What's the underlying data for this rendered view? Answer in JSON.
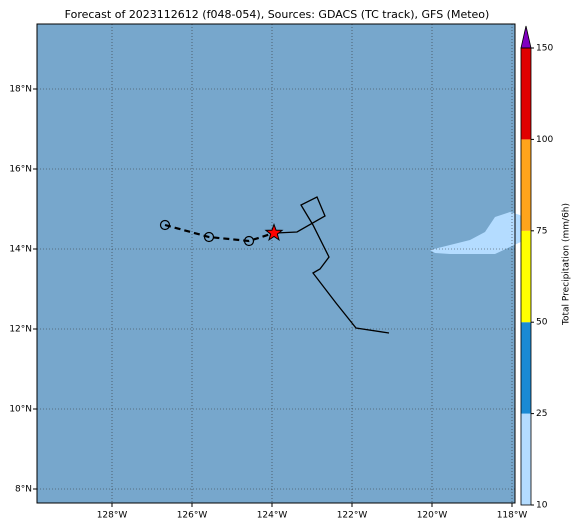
{
  "chart_data": {
    "type": "map",
    "title": "Forecast of 2023112612 (f048-054), Sources: GDACS (TC track), GFS (Meteo)",
    "xlim": [
      -129.875,
      -117.925
    ],
    "ylim": [
      7.65,
      19.625
    ],
    "xticks": [
      {
        "value": -128,
        "label": "128°W"
      },
      {
        "value": -126,
        "label": "126°W"
      },
      {
        "value": -124,
        "label": "124°W"
      },
      {
        "value": -122,
        "label": "122°W"
      },
      {
        "value": -120,
        "label": "120°W"
      },
      {
        "value": -118,
        "label": "118°W"
      }
    ],
    "yticks": [
      {
        "value": 8,
        "label": "8°N"
      },
      {
        "value": 10,
        "label": "10°N"
      },
      {
        "value": 12,
        "label": "12°N"
      },
      {
        "value": 14,
        "label": "14°N"
      },
      {
        "value": 16,
        "label": "16°N"
      },
      {
        "value": 18,
        "label": "18°N"
      }
    ],
    "grid": true,
    "background": "#77a7cc",
    "precip_area": {
      "color": "#b4dcff",
      "lon": [
        -120.05,
        -119.55,
        -119.05,
        -118.675,
        -118.425,
        -118.05,
        -117.8,
        -117.675,
        -117.675,
        -118.05,
        -118.425,
        -118.925,
        -119.55,
        -119.925
      ],
      "lat": [
        13.975,
        14.1,
        14.225,
        14.425,
        14.8,
        14.925,
        14.85,
        14.55,
        14.225,
        14.05,
        13.875,
        13.875,
        13.875,
        13.9
      ]
    },
    "precip_area_edge": {
      "color": "#b4dcff",
      "lon": [
        -117.675,
        -117.925,
        -117.925,
        -117.75
      ],
      "lat": [
        14.8,
        14.875,
        14.475,
        14.425
      ]
    },
    "track": {
      "color": "#000000",
      "lon": [
        -123.9,
        -123.375,
        -122.675,
        -122.875,
        -123.275,
        -122.975,
        -122.575,
        -122.8,
        -122.975,
        -122.4,
        -121.9,
        -121.075
      ],
      "lat": [
        14.4,
        14.425,
        14.825,
        15.3,
        15.1,
        14.6,
        13.8,
        13.5,
        13.4,
        12.65,
        12.025,
        11.9
      ]
    },
    "forecast_positions": {
      "color": "#000000",
      "lon": [
        -126.675,
        -125.575,
        -124.575
      ],
      "lat": [
        14.6,
        14.3,
        14.2
      ]
    },
    "current_position": {
      "color": "#ff0000",
      "lon": -123.95,
      "lat": 14.4
    },
    "colorbar": {
      "label": "Total Precipitation (mm/6h)",
      "levels": [
        10,
        25,
        50,
        75,
        100,
        150
      ],
      "colors": [
        "#b4dcff",
        "#1a8ad4",
        "#ffff00",
        "#ffa41c",
        "#e00000"
      ],
      "extend_color": "#8000c0"
    }
  }
}
